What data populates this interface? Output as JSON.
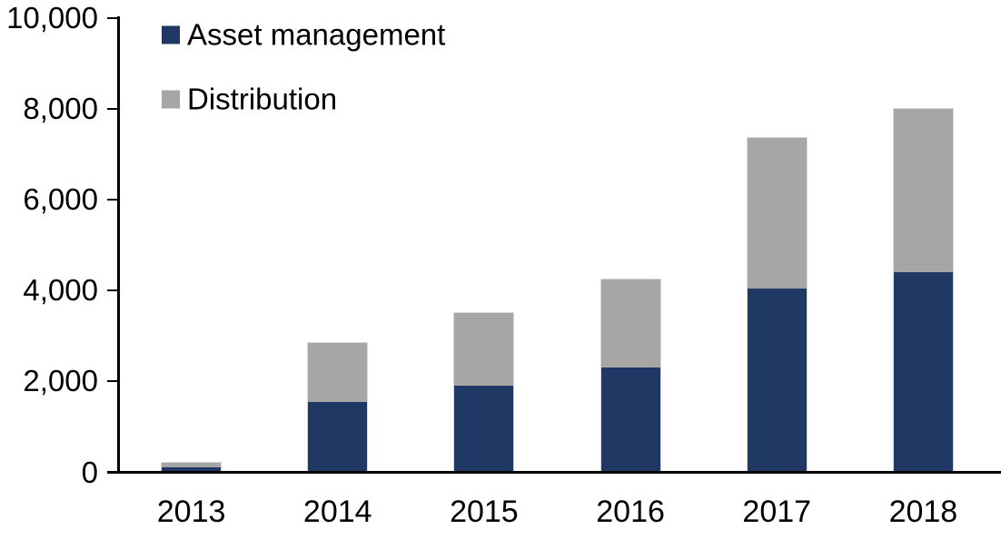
{
  "chart_data": {
    "type": "bar",
    "stacked": true,
    "title": "",
    "categories": [
      "2013",
      "2014",
      "2015",
      "2016",
      "2017",
      "2018"
    ],
    "series": [
      {
        "name": "Asset management",
        "color": "#1F3864",
        "values": [
          100,
          1550,
          1900,
          2300,
          4050,
          4400
        ]
      },
      {
        "name": "Distribution",
        "color": "#A6A6A6",
        "values": [
          100,
          1300,
          1600,
          1950,
          3300,
          3600
        ]
      }
    ],
    "totals": [
      200,
      2850,
      3500,
      4250,
      7350,
      8000
    ],
    "ylim": [
      0,
      10000
    ],
    "yticks": [
      0,
      2000,
      4000,
      6000,
      8000,
      10000
    ],
    "ytick_labels": [
      "0",
      "2,000",
      "4,000",
      "6,000",
      "8,000",
      "10,000"
    ],
    "legend_position": "top-left",
    "grid": false,
    "axis_color": "#000000",
    "background_color": "#FFFFFF",
    "bar_border_color": "#D9D9D9"
  }
}
